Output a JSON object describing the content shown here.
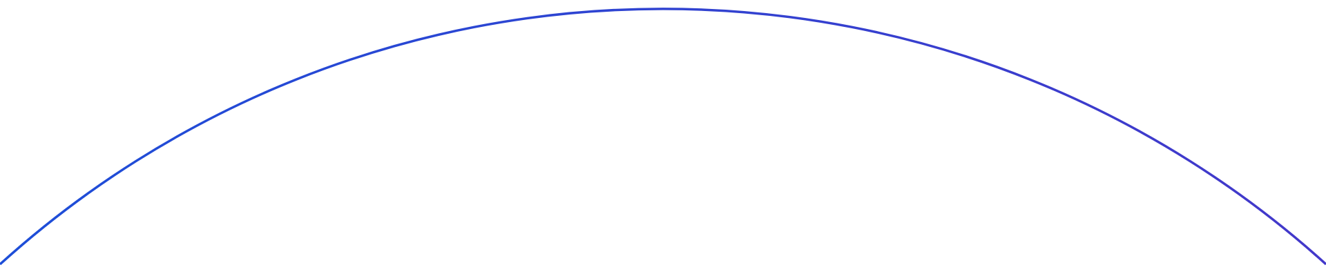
{
  "decoration": {
    "shape": "arc",
    "gradient_start_color": "#1d4ed8",
    "gradient_end_color": "#4338ca"
  }
}
